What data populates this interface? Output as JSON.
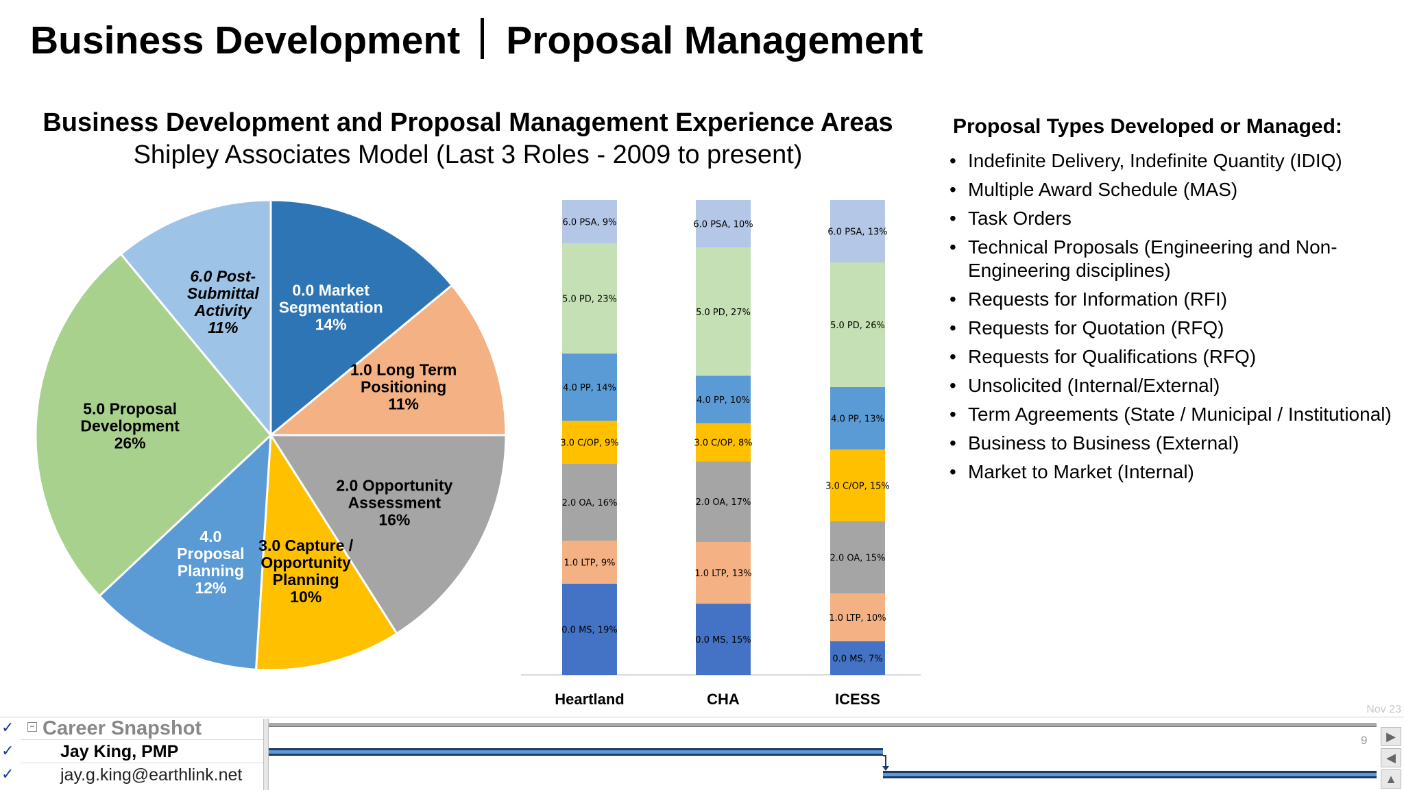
{
  "page_title": {
    "left": "Business Development",
    "right": "Proposal Management"
  },
  "chart_data": [
    {
      "type": "pie",
      "title": "Business Development and Proposal Management Experience Areas",
      "subtitle": "Shipley Associates Model (Last 3 Roles - 2009 to present)",
      "slices": [
        {
          "label": "0.0 Market\nSegmentation",
          "value": 14,
          "display": "14%",
          "color": "#2e75b6"
        },
        {
          "label": "1.0 Long Term\nPositioning",
          "value": 11,
          "display": "11%",
          "color": "#f4b183"
        },
        {
          "label": "2.0 Opportunity\nAssessment",
          "value": 16,
          "display": "16%",
          "color": "#a5a5a5"
        },
        {
          "label": "3.0 Capture /\nOpportunity\nPlanning",
          "value": 10,
          "display": "10%",
          "color": "#ffc000"
        },
        {
          "label": "4.0\nProposal\nPlanning",
          "value": 12,
          "display": "12%",
          "color": "#5b9bd5"
        },
        {
          "label": "5.0 Proposal\nDevelopment",
          "value": 26,
          "display": "26%",
          "color": "#a9d18e"
        },
        {
          "label": "6.0 Post-\nSubmittal\nActivity",
          "value": 11,
          "display": "11%",
          "color": "#9dc3e6"
        }
      ]
    },
    {
      "type": "bar",
      "stacked": true,
      "categories": [
        "Heartland",
        "CHA",
        "ICESS"
      ],
      "series": [
        {
          "name": "0.0 MS",
          "values": [
            19,
            15,
            7
          ],
          "color": "#4472c4"
        },
        {
          "name": "1.0 LTP",
          "values": [
            9,
            13,
            10
          ],
          "color": "#f4b183"
        },
        {
          "name": "2.0 OA",
          "values": [
            16,
            17,
            15
          ],
          "color": "#a5a5a5"
        },
        {
          "name": "3.0 C/OP",
          "values": [
            9,
            8,
            15
          ],
          "color": "#ffc000"
        },
        {
          "name": "4.0 PP",
          "values": [
            14,
            10,
            13
          ],
          "color": "#5b9bd5"
        },
        {
          "name": "5.0 PD",
          "values": [
            23,
            27,
            26
          ],
          "color": "#c5e0b4"
        },
        {
          "name": "6.0 PSA",
          "values": [
            9,
            10,
            13
          ],
          "color": "#b4c7e7"
        }
      ]
    }
  ],
  "proposal_types": {
    "heading": "Proposal Types Developed or Managed:",
    "items": [
      "Indefinite Delivery, Indefinite Quantity (IDIQ)",
      "Multiple Award Schedule (MAS)",
      "Task Orders",
      "Technical Proposals (Engineering and Non-Engineering disciplines)",
      "Requests for Information (RFI)",
      "Requests for Quotation (RFQ)",
      "Requests for Qualifications (RFQ)",
      "Unsolicited (Internal/External)",
      "Term Agreements (State / Municipal / Institutional)",
      "Business to Business (External)",
      "Market to Market (Internal)"
    ]
  },
  "bottom_panel": {
    "collapse_symbol": "−",
    "snapshot_label": "Career Snapshot",
    "name": "Jay King, PMP",
    "email": "jay.g.king@earthlink.net",
    "check": "✓",
    "date_label": "Nov 23",
    "page_number": "9"
  }
}
